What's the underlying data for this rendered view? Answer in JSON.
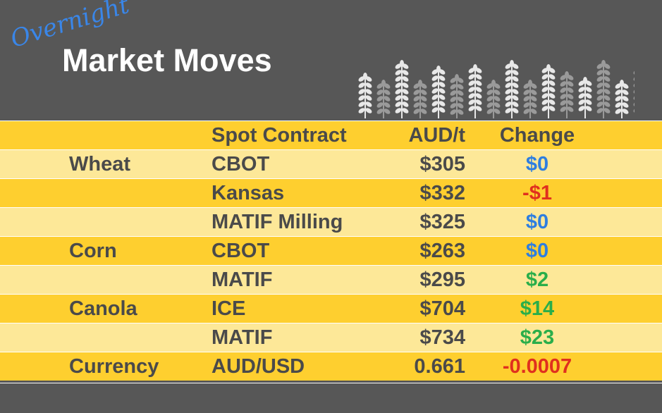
{
  "header": {
    "title_script": "Overnight",
    "title": "Market Moves"
  },
  "table": {
    "columns": [
      "Spot Contract",
      "AUD/t",
      "Change"
    ],
    "rows": [
      {
        "commodity": "Wheat",
        "contract": "CBOT",
        "price": "$305",
        "change": "$0",
        "change_color": "#2e7ee0"
      },
      {
        "contract": "Kansas",
        "price": "$332",
        "change": "-$1",
        "change_color": "#e0301e"
      },
      {
        "contract": "MATIF Milling",
        "price": "$325",
        "change": "$0",
        "change_color": "#2e7ee0"
      },
      {
        "commodity": "Corn",
        "contract": "CBOT",
        "price": "$263",
        "change": "$0",
        "change_color": "#2e7ee0"
      },
      {
        "contract": "MATIF",
        "price": "$295",
        "change": "$2",
        "change_color": "#2aae4a"
      },
      {
        "commodity": "Canola",
        "contract": "ICE",
        "price": "$704",
        "change": "$14",
        "change_color": "#2aae4a"
      },
      {
        "contract": "MATIF",
        "price": "$734",
        "change": "$23",
        "change_color": "#2aae4a"
      },
      {
        "commodity": "Currency",
        "contract": "AUD/USD",
        "price": "0.661",
        "change": "-0.0007",
        "change_color": "#e0301e"
      }
    ]
  }
}
